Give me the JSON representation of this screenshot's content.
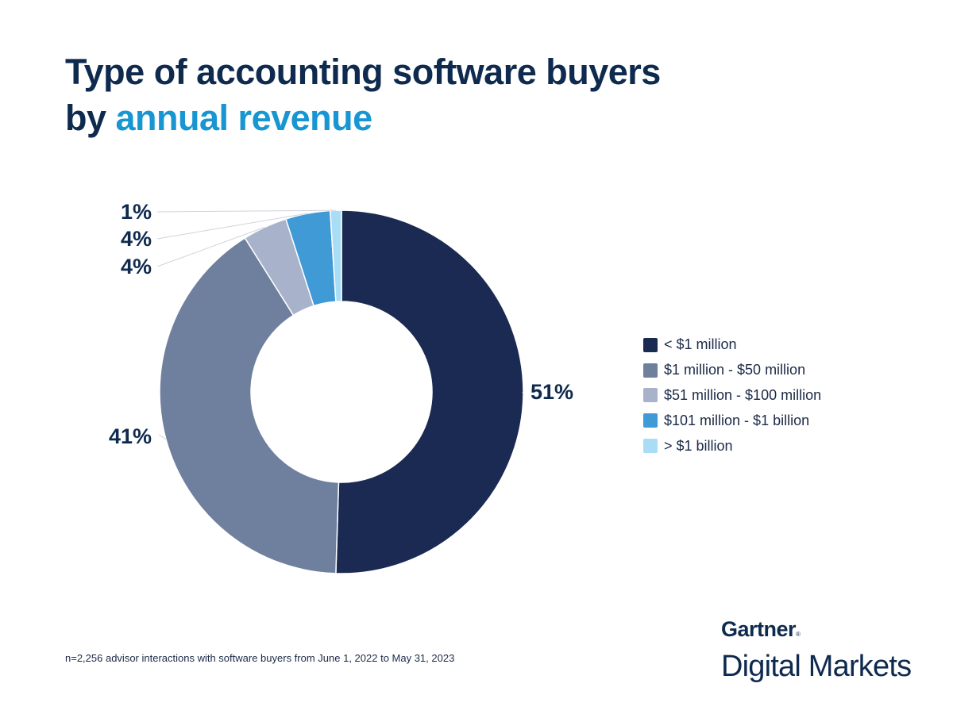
{
  "header": {
    "title_line1": "Type of accounting software buyers",
    "title_line2_prefix": "by ",
    "title_line2_accent": "annual revenue"
  },
  "chart_data": {
    "type": "pie",
    "style": "donut",
    "categories": [
      "< $1 million",
      "$1 million - $50 million",
      "$51 million - $100 million",
      "$101 million - $1 billion",
      "> $1 billion"
    ],
    "values": [
      51,
      41,
      4,
      4,
      1
    ],
    "labels": [
      "51%",
      "41%",
      "4%",
      "4%",
      "1%"
    ],
    "colors": [
      "#1b2a52",
      "#6f7f9e",
      "#a8b3cb",
      "#3f9ad6",
      "#a9ddf5"
    ],
    "legend_position": "right"
  },
  "footnote": "n=2,256 advisor interactions with software buyers from June 1, 2022 to May 31, 2023",
  "brand": {
    "name": "Gartner",
    "registered": "®",
    "sub": "Digital Markets"
  }
}
